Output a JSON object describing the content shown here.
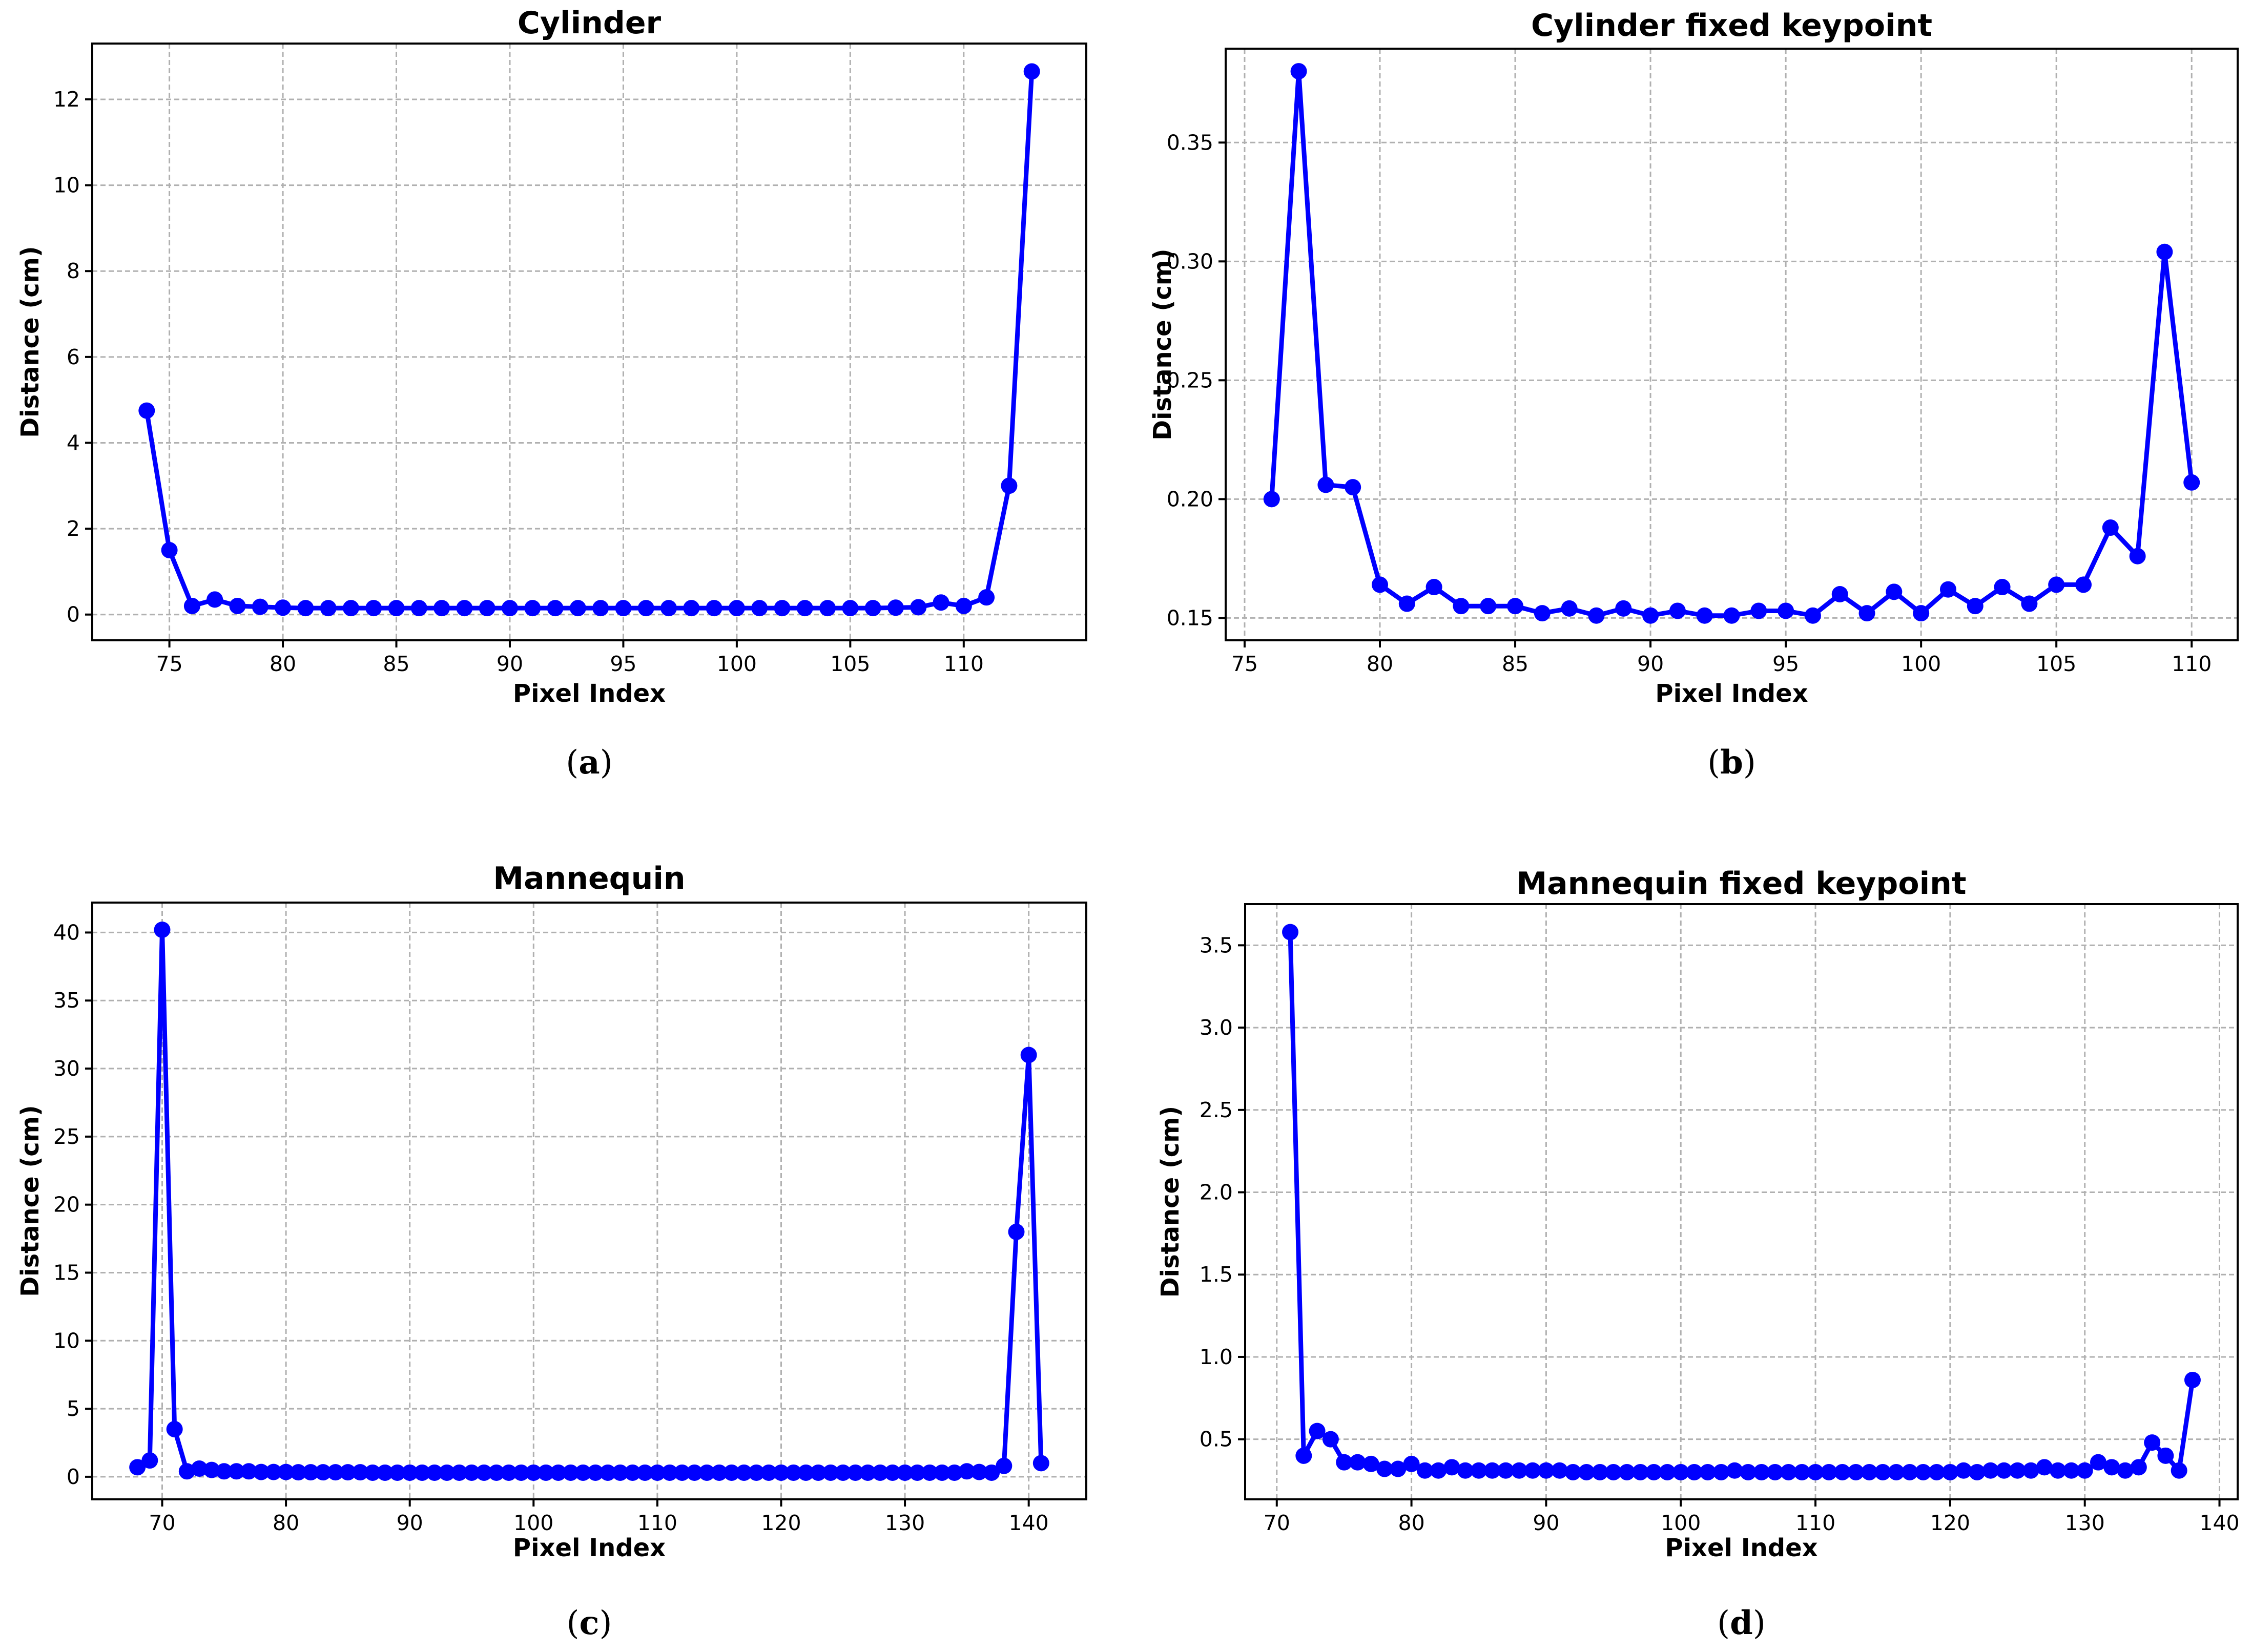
{
  "chart_data": [
    {
      "type": "line",
      "caption": "a",
      "title": "Cylinder",
      "xlabel": "Pixel Index",
      "ylabel": "Distance (cm)",
      "xlim": [
        71.6,
        115.4
      ],
      "ylim": [
        -0.6,
        13.3
      ],
      "xticks": [
        75,
        80,
        85,
        90,
        95,
        100,
        105,
        110
      ],
      "yticks": [
        0,
        2,
        4,
        6,
        8,
        10,
        12
      ],
      "tick_decimals": 0,
      "grid": true,
      "color": "#0000ff",
      "x": [
        74,
        75,
        76,
        77,
        78,
        79,
        80,
        81,
        82,
        83,
        84,
        85,
        86,
        87,
        88,
        89,
        90,
        91,
        92,
        93,
        94,
        95,
        96,
        97,
        98,
        99,
        100,
        101,
        102,
        103,
        104,
        105,
        106,
        107,
        108,
        109,
        110,
        111,
        112,
        113
      ],
      "y": [
        4.75,
        1.5,
        0.2,
        0.35,
        0.2,
        0.18,
        0.16,
        0.15,
        0.15,
        0.15,
        0.15,
        0.15,
        0.15,
        0.15,
        0.15,
        0.15,
        0.15,
        0.15,
        0.15,
        0.15,
        0.15,
        0.15,
        0.15,
        0.15,
        0.15,
        0.15,
        0.15,
        0.15,
        0.15,
        0.15,
        0.15,
        0.15,
        0.15,
        0.16,
        0.17,
        0.28,
        0.2,
        0.4,
        3.0,
        12.65
      ]
    },
    {
      "type": "line",
      "caption": "b",
      "title": "Cylinder fixed keypoint",
      "xlabel": "Pixel Index",
      "ylabel": "Distance (cm)",
      "xlim": [
        74.3,
        111.7
      ],
      "ylim": [
        0.1406,
        0.3895
      ],
      "xticks": [
        75,
        80,
        85,
        90,
        95,
        100,
        105,
        110
      ],
      "yticks": [
        0.15,
        0.2,
        0.25,
        0.3,
        0.35
      ],
      "tick_decimals": 2,
      "grid": true,
      "color": "#0000ff",
      "x": [
        76,
        77,
        78,
        79,
        80,
        81,
        82,
        83,
        84,
        85,
        86,
        87,
        88,
        89,
        90,
        91,
        92,
        93,
        94,
        95,
        96,
        97,
        98,
        99,
        100,
        101,
        102,
        103,
        104,
        105,
        106,
        107,
        108,
        109,
        110
      ],
      "y": [
        0.2,
        0.38,
        0.206,
        0.205,
        0.164,
        0.156,
        0.163,
        0.155,
        0.155,
        0.155,
        0.152,
        0.154,
        0.151,
        0.154,
        0.151,
        0.153,
        0.151,
        0.151,
        0.153,
        0.153,
        0.151,
        0.16,
        0.152,
        0.161,
        0.152,
        0.162,
        0.155,
        0.163,
        0.156,
        0.164,
        0.164,
        0.188,
        0.176,
        0.304,
        0.207
      ]
    },
    {
      "type": "line",
      "caption": "c",
      "title": "Mannequin",
      "xlabel": "Pixel Index",
      "ylabel": "Distance (cm)",
      "xlim": [
        64.35,
        144.65
      ],
      "ylim": [
        -1.66,
        42.2
      ],
      "xticks": [
        70,
        80,
        90,
        100,
        110,
        120,
        130,
        140
      ],
      "yticks": [
        0,
        5,
        10,
        15,
        20,
        25,
        30,
        35,
        40
      ],
      "tick_decimals": 0,
      "grid": true,
      "color": "#0000ff",
      "x": [
        68,
        69,
        70,
        71,
        72,
        73,
        74,
        75,
        76,
        77,
        78,
        79,
        80,
        81,
        82,
        83,
        84,
        85,
        86,
        87,
        88,
        89,
        90,
        91,
        92,
        93,
        94,
        95,
        96,
        97,
        98,
        99,
        100,
        101,
        102,
        103,
        104,
        105,
        106,
        107,
        108,
        109,
        110,
        111,
        112,
        113,
        114,
        115,
        116,
        117,
        118,
        119,
        120,
        121,
        122,
        123,
        124,
        125,
        126,
        127,
        128,
        129,
        130,
        131,
        132,
        133,
        134,
        135,
        136,
        137,
        138,
        139,
        140,
        141
      ],
      "y": [
        0.7,
        1.2,
        40.2,
        3.5,
        0.4,
        0.6,
        0.5,
        0.4,
        0.4,
        0.4,
        0.35,
        0.35,
        0.35,
        0.33,
        0.33,
        0.33,
        0.33,
        0.33,
        0.33,
        0.3,
        0.3,
        0.3,
        0.3,
        0.3,
        0.3,
        0.3,
        0.3,
        0.3,
        0.3,
        0.3,
        0.3,
        0.3,
        0.3,
        0.3,
        0.3,
        0.3,
        0.3,
        0.3,
        0.3,
        0.3,
        0.3,
        0.3,
        0.3,
        0.3,
        0.3,
        0.3,
        0.3,
        0.3,
        0.3,
        0.3,
        0.3,
        0.3,
        0.3,
        0.3,
        0.3,
        0.3,
        0.3,
        0.3,
        0.3,
        0.3,
        0.3,
        0.3,
        0.3,
        0.3,
        0.3,
        0.3,
        0.3,
        0.4,
        0.35,
        0.3,
        0.8,
        18.0,
        31.0,
        1.0
      ]
    },
    {
      "type": "line",
      "caption": "d",
      "title": "Mannequin fixed keypoint",
      "xlabel": "Pixel Index",
      "ylabel": "Distance (cm)",
      "xlim": [
        67.65,
        141.35
      ],
      "ylim": [
        0.135,
        3.75
      ],
      "xticks": [
        70,
        80,
        90,
        100,
        110,
        120,
        130,
        140
      ],
      "yticks": [
        0.5,
        1.0,
        1.5,
        2.0,
        2.5,
        3.0,
        3.5
      ],
      "tick_decimals": 1,
      "grid": true,
      "color": "#0000ff",
      "x": [
        71,
        72,
        73,
        74,
        75,
        76,
        77,
        78,
        79,
        80,
        81,
        82,
        83,
        84,
        85,
        86,
        87,
        88,
        89,
        90,
        91,
        92,
        93,
        94,
        95,
        96,
        97,
        98,
        99,
        100,
        101,
        102,
        103,
        104,
        105,
        106,
        107,
        108,
        109,
        110,
        111,
        112,
        113,
        114,
        115,
        116,
        117,
        118,
        119,
        120,
        121,
        122,
        123,
        124,
        125,
        126,
        127,
        128,
        129,
        130,
        131,
        132,
        133,
        134,
        135,
        136,
        137,
        138
      ],
      "y": [
        3.58,
        0.4,
        0.55,
        0.5,
        0.36,
        0.36,
        0.35,
        0.32,
        0.32,
        0.35,
        0.31,
        0.31,
        0.33,
        0.31,
        0.31,
        0.31,
        0.31,
        0.31,
        0.31,
        0.31,
        0.31,
        0.3,
        0.3,
        0.3,
        0.3,
        0.3,
        0.3,
        0.3,
        0.3,
        0.3,
        0.3,
        0.3,
        0.3,
        0.31,
        0.3,
        0.3,
        0.3,
        0.3,
        0.3,
        0.3,
        0.3,
        0.3,
        0.3,
        0.3,
        0.3,
        0.3,
        0.3,
        0.3,
        0.3,
        0.3,
        0.31,
        0.3,
        0.31,
        0.31,
        0.31,
        0.31,
        0.33,
        0.31,
        0.31,
        0.31,
        0.36,
        0.33,
        0.31,
        0.33,
        0.48,
        0.4,
        0.31,
        0.86
      ]
    }
  ]
}
